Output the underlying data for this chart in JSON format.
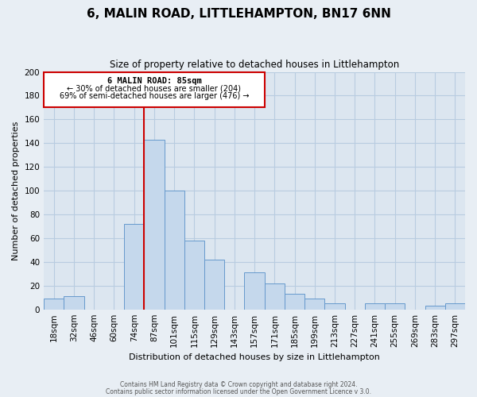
{
  "title": "6, MALIN ROAD, LITTLEHAMPTON, BN17 6NN",
  "subtitle": "Size of property relative to detached houses in Littlehampton",
  "xlabel": "Distribution of detached houses by size in Littlehampton",
  "ylabel": "Number of detached properties",
  "bar_color": "#c5d8ec",
  "bar_edge_color": "#6699cc",
  "marker_color": "#cc0000",
  "categories": [
    "18sqm",
    "32sqm",
    "46sqm",
    "60sqm",
    "74sqm",
    "87sqm",
    "101sqm",
    "115sqm",
    "129sqm",
    "143sqm",
    "157sqm",
    "171sqm",
    "185sqm",
    "199sqm",
    "213sqm",
    "227sqm",
    "241sqm",
    "255sqm",
    "269sqm",
    "283sqm",
    "297sqm"
  ],
  "values": [
    9,
    11,
    0,
    0,
    72,
    143,
    100,
    58,
    42,
    0,
    31,
    22,
    13,
    9,
    5,
    0,
    5,
    5,
    0,
    3,
    5
  ],
  "ylim": [
    0,
    200
  ],
  "yticks": [
    0,
    20,
    40,
    60,
    80,
    100,
    120,
    140,
    160,
    180,
    200
  ],
  "annotation_title": "6 MALIN ROAD: 85sqm",
  "annotation_line1": "← 30% of detached houses are smaller (204)",
  "annotation_line2": "69% of semi-detached houses are larger (476) →",
  "footer1": "Contains HM Land Registry data © Crown copyright and database right 2024.",
  "footer2": "Contains public sector information licensed under the Open Government Licence v 3.0.",
  "background_color": "#e8eef4",
  "plot_bg_color": "#dce6f0",
  "grid_color": "#b8cce0"
}
